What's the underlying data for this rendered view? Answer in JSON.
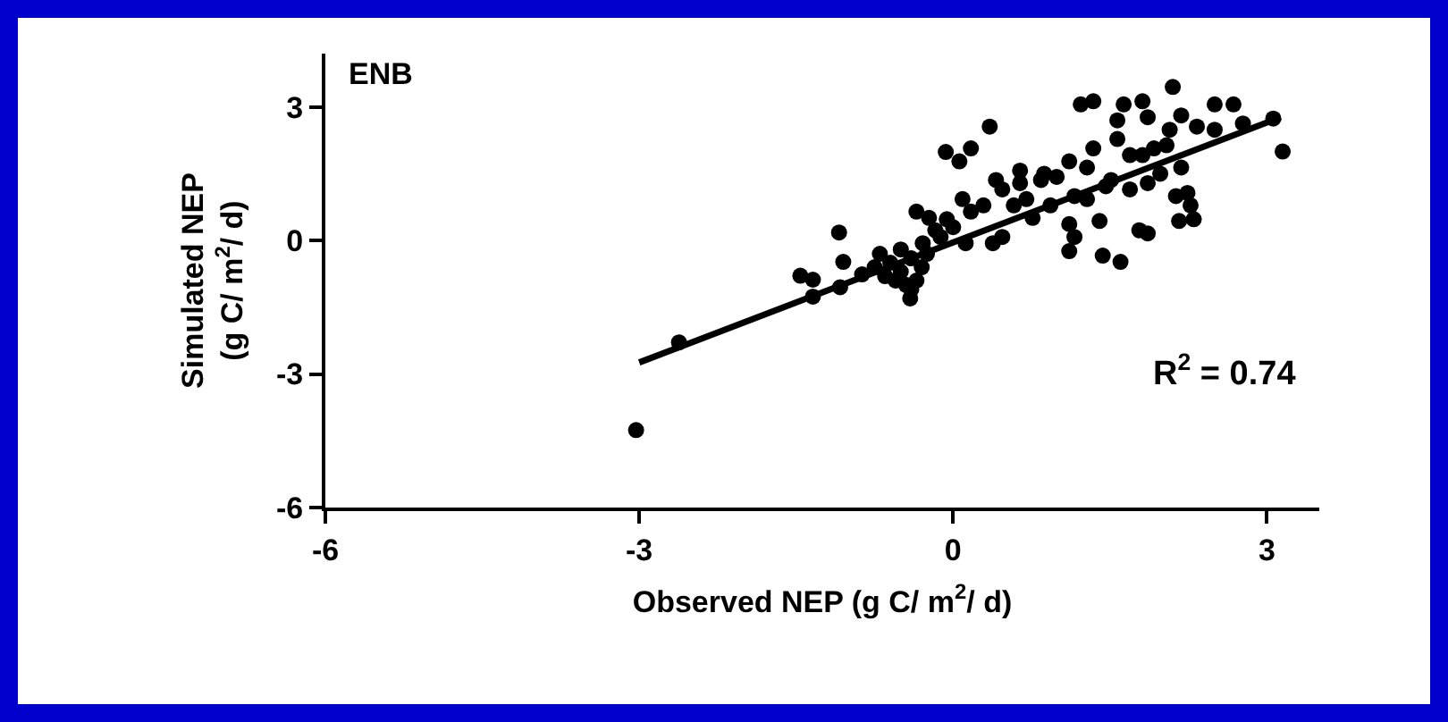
{
  "chart_data": {
    "type": "scatter",
    "xlabel": "Observed NEP (g C/ m$^{2}$/ d)",
    "ylabel": "Simulated NEP\n(g C/ m$^{2}$/ d)",
    "annotations": [
      "ENB",
      "R$^{2}$ = 0.74"
    ],
    "xlim": [
      -6,
      3.5
    ],
    "xticks": [
      -6,
      -3,
      0,
      3
    ],
    "ylim": [
      -6,
      4.2
    ],
    "yticks": [
      -6,
      -3,
      0,
      3
    ],
    "grid": false,
    "marker": "circle",
    "series": [
      {
        "color": "#000000",
        "x": [
          -3.03,
          -2.62,
          -1.34,
          -1.46,
          -1.34,
          -1.09,
          -1.05,
          -1.08,
          -0.87,
          -0.41,
          -0.35,
          -0.23,
          -0.06,
          -0.07,
          0.06,
          0.17,
          0.35,
          0.09,
          0.12,
          0.38,
          0.47,
          0.41,
          0.64,
          0.58,
          0.84,
          0.99,
          1.11,
          1.34,
          1.22,
          1.34,
          1.63,
          1.81,
          2.1,
          1.86,
          1.57,
          1.57,
          1.51,
          1.16,
          1.11,
          1.16,
          1.11,
          1.4,
          1.43,
          1.6,
          1.78,
          1.86,
          2.13,
          2.24,
          2.27,
          2.16,
          2.3,
          1.81,
          1.92,
          2.04,
          2.18,
          2.07,
          2.18,
          2.33,
          2.5,
          2.68,
          2.5,
          2.77,
          3.06,
          3.15,
          -0.17,
          0.17,
          0.29,
          0.47,
          0.7,
          0.76,
          0.93,
          1.28,
          1.46,
          1.69,
          1.86,
          1.98,
          1.69,
          1.28,
          0.87,
          0.64,
          -0.12,
          -0.29,
          0,
          -0.7,
          -0.6,
          -0.5,
          -0.4,
          -0.55,
          -0.45,
          -0.3,
          -0.65,
          -0.5,
          -0.35,
          -0.25,
          -0.75,
          -0.4
        ],
        "values": [
          -4.26,
          -2.29,
          -1.26,
          -0.79,
          -0.88,
          0.18,
          -0.48,
          -1.05,
          -0.76,
          -1.3,
          0.65,
          0.51,
          0.48,
          1.99,
          1.78,
          2.07,
          2.56,
          0.93,
          -0.06,
          -0.06,
          0.08,
          1.36,
          1.57,
          0.79,
          1.36,
          1.43,
          1.78,
          2.07,
          3.06,
          3.13,
          3.06,
          3.13,
          3.45,
          2.77,
          2.7,
          2.28,
          1.36,
          1.0,
          0.37,
          0.08,
          -0.24,
          0.44,
          -0.34,
          -0.48,
          0.23,
          0.16,
          1.0,
          1.07,
          0.79,
          0.44,
          0.48,
          1.92,
          2.07,
          2.14,
          1.64,
          2.49,
          2.81,
          2.56,
          3.06,
          3.06,
          2.49,
          2.63,
          2.74,
          2.0,
          0.23,
          0.65,
          0.79,
          1.15,
          0.93,
          0.51,
          0.79,
          0.93,
          1.22,
          1.15,
          1.29,
          1.5,
          1.92,
          1.64,
          1.5,
          1.29,
          0.08,
          -0.06,
          0.3,
          -0.3,
          -0.5,
          -0.7,
          -0.4,
          -0.9,
          -1.0,
          -0.6,
          -0.8,
          -0.2,
          -0.9,
          -0.3,
          -0.6,
          -1.1
        ]
      },
      {
        "type": "line",
        "color": "#000000",
        "x": [
          -3.0,
          3.13
        ],
        "values": [
          -2.74,
          2.77
        ],
        "marker": "none",
        "line_style": "solid"
      }
    ]
  }
}
